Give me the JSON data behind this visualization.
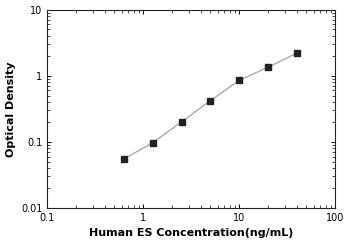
{
  "x_data": [
    0.625,
    1.25,
    2.5,
    5.0,
    10.0,
    20.0,
    40.0
  ],
  "y_data": [
    0.055,
    0.097,
    0.2,
    0.42,
    0.85,
    1.35,
    2.2
  ],
  "x_label": "Human ES Concentration(ng/mL)",
  "y_label": "Optical Density",
  "x_lim": [
    0.1,
    100
  ],
  "y_lim": [
    0.01,
    10
  ],
  "x_ticks": [
    0.1,
    1,
    10,
    100
  ],
  "y_ticks": [
    0.01,
    0.1,
    1,
    10
  ],
  "line_color": "#aaaaaa",
  "marker_color": "#222222",
  "marker_style": "s",
  "marker_size": 4,
  "line_width": 1.0,
  "background_color": "#ffffff",
  "label_fontsize": 8,
  "tick_fontsize": 7
}
